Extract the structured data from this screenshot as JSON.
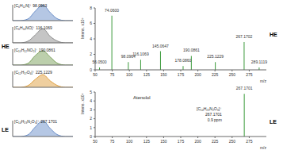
{
  "chart_data": [
    {
      "type": "area",
      "group": "HE",
      "title": "[C₆H₁₂N]⁺ 98.0963",
      "color": "#6b8fc9",
      "x": [
        0,
        1,
        2,
        3,
        4,
        5,
        6,
        7,
        8
      ],
      "values": [
        0,
        0,
        1,
        6,
        10,
        5,
        1,
        0,
        0
      ],
      "xlim": [
        0,
        8
      ],
      "ylim": [
        0,
        10
      ],
      "tick_labels": false
    },
    {
      "type": "area",
      "group": "HE",
      "title": "[C₆H₁₄NO]⁺ 116.1069",
      "color": "#8c8c8c",
      "x": [
        0,
        1,
        2,
        3,
        4,
        5,
        6,
        7,
        8
      ],
      "values": [
        0,
        0,
        1,
        5,
        9,
        4,
        1,
        0,
        0
      ],
      "xlim": [
        0,
        8
      ],
      "ylim": [
        0,
        10
      ],
      "tick_labels": false
    },
    {
      "type": "area",
      "group": "HE",
      "title": "[C₁₀H₁₂NO₂]⁺ 190.0861",
      "color": "#7aa05a",
      "x": [
        0,
        1,
        2,
        3,
        4,
        5,
        6,
        7,
        8
      ],
      "values": [
        0,
        0,
        1,
        6,
        9,
        5,
        1,
        0,
        0
      ],
      "xlim": [
        0,
        8
      ],
      "ylim": [
        0,
        10
      ],
      "tick_labels": false
    },
    {
      "type": "area",
      "group": "HE",
      "title": "[C₁₂H₁₇O₄]⁺ 225.1229",
      "color": "#e0a040",
      "x": [
        0,
        1,
        2,
        3,
        4,
        5,
        6,
        7,
        8
      ],
      "values": [
        0,
        0,
        1,
        5,
        8,
        4,
        1,
        0,
        0
      ],
      "xlim": [
        0,
        8
      ],
      "ylim": [
        0,
        10
      ],
      "tick_labels": false
    },
    {
      "type": "area",
      "group": "LE",
      "title": "[C₁₄H₂₃N₂O₃]⁺ 267.1701",
      "color": "#6b8fc9",
      "x": [
        0,
        1,
        2,
        3,
        4,
        5,
        6,
        7,
        8
      ],
      "values": [
        0,
        0,
        1,
        6,
        10,
        5,
        1,
        0,
        0
      ],
      "xlim": [
        0,
        8
      ],
      "ylim": [
        0,
        10
      ],
      "tick_labels": false
    },
    {
      "type": "bar",
      "group": "HE",
      "color": "#3a9a3a",
      "ylabel": "Intens. x10⁵",
      "xlabel": "m/z",
      "x": [
        56.05,
        74.06,
        98.0964,
        116.1069,
        145.0647,
        178.086,
        190.0861,
        225.1229,
        267.1702,
        289.1119
      ],
      "values": [
        0.3,
        7.0,
        1.0,
        1.3,
        2.4,
        0.5,
        1.8,
        1.0,
        3.6,
        0.3
      ],
      "x_labels": [
        "56.0500",
        "74.0600",
        "98.0964",
        "116.1069",
        "145.0647",
        "178.0860",
        "190.0861",
        "225.1229",
        "267.1702",
        "289.1119"
      ],
      "xlim": [
        50,
        300
      ],
      "xticks": [
        50,
        75,
        100,
        125,
        150,
        175,
        200,
        225,
        250,
        275
      ],
      "ylim": [
        0,
        8
      ],
      "yticks": [
        0,
        2,
        4,
        6,
        8
      ]
    },
    {
      "type": "bar",
      "group": "LE",
      "color": "#3a9a3a",
      "ylabel": "Intens. x10⁵",
      "xlabel": "m/z",
      "compound": "Atenolol",
      "annotations": [
        "[C₁₄H₂₃N₂O₃]⁺",
        "267.1701",
        "0.9 ppm"
      ],
      "x": [
        267.1701
      ],
      "values": [
        4.8
      ],
      "x_labels": [
        "267.1701"
      ],
      "xlim": [
        50,
        300
      ],
      "xticks": [
        50,
        75,
        100,
        125,
        150,
        175,
        200,
        225,
        250,
        275
      ],
      "ylim": [
        0,
        5
      ],
      "yticks": [
        0,
        1,
        2,
        3,
        4,
        5
      ]
    }
  ]
}
